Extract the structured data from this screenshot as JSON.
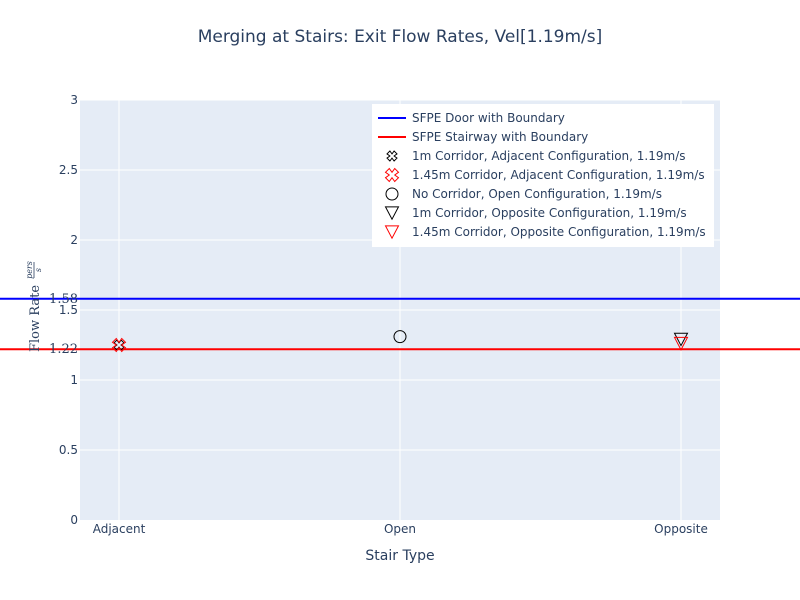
{
  "chart_data": {
    "type": "scatter",
    "title": "Merging at Stairs: Exit Flow Rates, Vel[1.19m/s]",
    "xlabel": "Stair Type",
    "ylabel": {
      "prefix": "Flow Rate",
      "numerator": "pers",
      "denominator": "s"
    },
    "categories": [
      "Adjacent",
      "Open",
      "Opposite"
    ],
    "ylim": [
      0,
      3
    ],
    "yticks": [
      "0",
      "0.5",
      "1",
      "1.5",
      "2",
      "2.5",
      "3"
    ],
    "ytick_values": [
      0,
      0.5,
      1,
      1.5,
      2,
      2.5,
      3
    ],
    "extra_yticks": [
      {
        "value": 1.58,
        "label": "1.58"
      },
      {
        "value": 1.22,
        "label": "1.22"
      }
    ],
    "grid": true,
    "legend_position": "top-right",
    "lines": [
      {
        "name": "SFPE Door with Boundary",
        "y": 1.58,
        "color": "#0000ff"
      },
      {
        "name": "SFPE Stairway with Boundary",
        "y": 1.22,
        "color": "#ff0000"
      }
    ],
    "series": [
      {
        "name": "1m Corridor, Adjacent Configuration, 1.19m/s",
        "marker": "x-open",
        "color": "#000000",
        "points": [
          {
            "x": "Adjacent",
            "y": 1.25
          }
        ]
      },
      {
        "name": "1.45m Corridor, Adjacent Configuration, 1.19m/s",
        "marker": "x-open",
        "color": "#ff0000",
        "points": [
          {
            "x": "Adjacent",
            "y": 1.25
          }
        ]
      },
      {
        "name": "No Corridor, Open Configuration, 1.19m/s",
        "marker": "circle-open",
        "color": "#000000",
        "points": [
          {
            "x": "Open",
            "y": 1.31
          }
        ]
      },
      {
        "name": "1m Corridor, Opposite Configuration, 1.19m/s",
        "marker": "triangle-down-open",
        "color": "#000000",
        "points": [
          {
            "x": "Opposite",
            "y": 1.29
          }
        ]
      },
      {
        "name": "1.45m Corridor, Opposite Configuration, 1.19m/s",
        "marker": "triangle-down-open",
        "color": "#ff0000",
        "points": [
          {
            "x": "Opposite",
            "y": 1.26
          }
        ]
      }
    ]
  }
}
